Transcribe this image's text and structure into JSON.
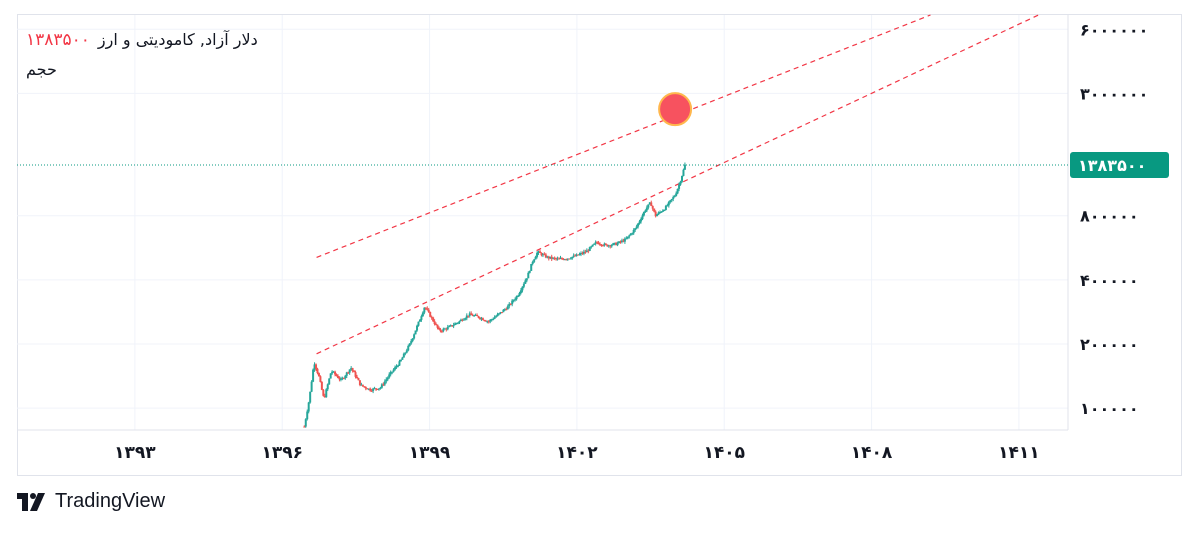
{
  "legend": {
    "symbol": "دلار آزاد, کامودیتی و ارز",
    "last_price": "۱۳۸۳۵۰۰",
    "volume_label": "حجم"
  },
  "brand": {
    "name": "TradingView",
    "icon": "tradingview-logo-icon"
  },
  "colors": {
    "up": "#26a69a",
    "down": "#ef5350",
    "channel": "#f23645",
    "marker_fill": "#f7525f",
    "marker_stroke": "#ffb74d",
    "price_tag": "#089981"
  },
  "chart_data": {
    "type": "candlestick",
    "title": "",
    "xlabel": "",
    "ylabel": "",
    "y_scale": "log",
    "last_price": 1383500,
    "last_price_label": "۱۳۸۳۵۰۰",
    "x_ticks": [
      {
        "value": 1393,
        "label": "۱۳۹۳"
      },
      {
        "value": 1396,
        "label": "۱۳۹۶"
      },
      {
        "value": 1399,
        "label": "۱۳۹۹"
      },
      {
        "value": 1402,
        "label": "۱۴۰۲"
      },
      {
        "value": 1405,
        "label": "۱۴۰۵"
      },
      {
        "value": 1408,
        "label": "۱۴۰۸"
      },
      {
        "value": 1411,
        "label": "۱۴۱۱"
      }
    ],
    "y_ticks": [
      {
        "value": 100000,
        "label": "۱۰۰۰۰۰"
      },
      {
        "value": 200000,
        "label": "۲۰۰۰۰۰"
      },
      {
        "value": 400000,
        "label": "۴۰۰۰۰۰"
      },
      {
        "value": 800000,
        "label": "۸۰۰۰۰۰"
      },
      {
        "value": 3000000,
        "label": "۳۰۰۰۰۰۰"
      },
      {
        "value": 6000000,
        "label": "۶۰۰۰۰۰۰"
      }
    ],
    "xlim": [
      1390.6,
      1412.0
    ],
    "ylim": [
      79000,
      7000000
    ],
    "price_path": [
      [
        1396.45,
        82000
      ],
      [
        1396.55,
        110000
      ],
      [
        1396.65,
        165000
      ],
      [
        1396.75,
        140000
      ],
      [
        1396.85,
        110000
      ],
      [
        1397.0,
        150000
      ],
      [
        1397.2,
        135000
      ],
      [
        1397.4,
        155000
      ],
      [
        1397.6,
        128000
      ],
      [
        1397.8,
        122000
      ],
      [
        1398.0,
        125000
      ],
      [
        1398.2,
        145000
      ],
      [
        1398.4,
        165000
      ],
      [
        1398.6,
        200000
      ],
      [
        1398.8,
        260000
      ],
      [
        1398.9,
        300000
      ],
      [
        1399.0,
        275000
      ],
      [
        1399.2,
        230000
      ],
      [
        1399.4,
        240000
      ],
      [
        1399.6,
        255000
      ],
      [
        1399.8,
        275000
      ],
      [
        1400.0,
        268000
      ],
      [
        1400.2,
        255000
      ],
      [
        1400.4,
        275000
      ],
      [
        1400.6,
        300000
      ],
      [
        1400.8,
        340000
      ],
      [
        1401.0,
        420000
      ],
      [
        1401.1,
        490000
      ],
      [
        1401.2,
        540000
      ],
      [
        1401.4,
        510000
      ],
      [
        1401.6,
        500000
      ],
      [
        1401.8,
        505000
      ],
      [
        1402.0,
        520000
      ],
      [
        1402.2,
        545000
      ],
      [
        1402.4,
        600000
      ],
      [
        1402.6,
        580000
      ],
      [
        1402.8,
        590000
      ],
      [
        1403.0,
        620000
      ],
      [
        1403.2,
        700000
      ],
      [
        1403.4,
        860000
      ],
      [
        1403.5,
        920000
      ],
      [
        1403.6,
        800000
      ],
      [
        1403.8,
        870000
      ],
      [
        1404.0,
        1000000
      ],
      [
        1404.1,
        1150000
      ],
      [
        1404.2,
        1383500
      ]
    ],
    "channel_lines": [
      {
        "name": "",
        "from": [
          1396.7,
          510000
        ],
        "to": [
          1409.2,
          7000000
        ]
      },
      {
        "name": "",
        "from": [
          1396.7,
          180000
        ],
        "to": [
          1411.4,
          7000000
        ]
      }
    ],
    "marker": {
      "x": 1404.0,
      "y": 2530000
    }
  }
}
